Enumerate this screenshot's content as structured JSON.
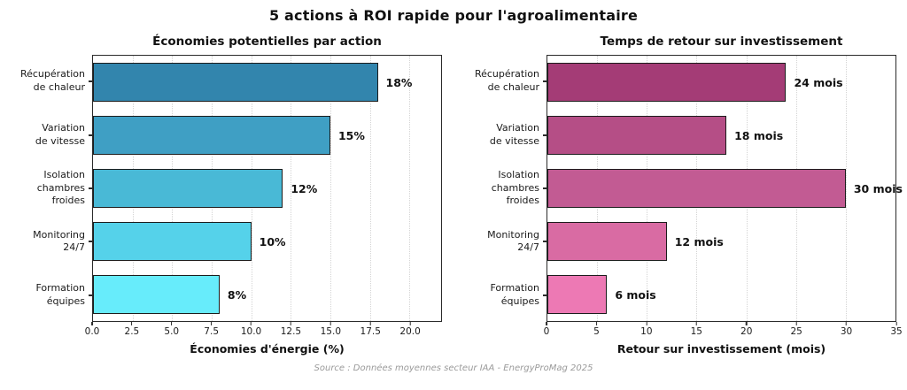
{
  "main_title": "5 actions à ROI rapide pour l'agroalimentaire",
  "source": "Source : Données moyennes secteur IAA - EnergyProMag 2025",
  "colors": {
    "background": "#ffffff",
    "bar_edge": "#1c1c1c",
    "grid": "#d4d4d4",
    "spine": "#2b2b2b",
    "text": "#111111",
    "source_text": "#9a9a9a"
  },
  "chart_data": [
    {
      "type": "bar",
      "orientation": "horizontal",
      "title": "Économies potentielles par action",
      "categories": [
        "Récupération\nde chaleur",
        "Variation\nde vitesse",
        "Isolation\nchambres froides",
        "Monitoring\n24/7",
        "Formation\néquipes"
      ],
      "values": [
        18,
        15,
        12,
        10,
        8
      ],
      "value_labels": [
        "18%",
        "15%",
        "12%",
        "10%",
        "8%"
      ],
      "xlabel": "Économies d'énergie (%)",
      "xlim": [
        0,
        22
      ],
      "tick_values": [
        0,
        2.5,
        5,
        7.5,
        10,
        12.5,
        15,
        17.5,
        20
      ],
      "tick_labels": [
        "0.0",
        "2.5",
        "5.0",
        "7.5",
        "10.0",
        "12.5",
        "15.0",
        "17.5",
        "20.0"
      ],
      "bar_colors": [
        "#3285ad",
        "#3f9fc4",
        "#49b9d6",
        "#55d2ea",
        "#67ecfb"
      ],
      "grid": true,
      "legend": null
    },
    {
      "type": "bar",
      "orientation": "horizontal",
      "title": "Temps de retour sur investissement",
      "categories": [
        "Récupération\nde chaleur",
        "Variation\nde vitesse",
        "Isolation\nchambres froides",
        "Monitoring\n24/7",
        "Formation\néquipes"
      ],
      "values": [
        24,
        18,
        30,
        12,
        6
      ],
      "value_labels": [
        "24 mois",
        "18 mois",
        "30 mois",
        "12 mois",
        "6 mois"
      ],
      "xlabel": "Retour sur investissement (mois)",
      "xlim": [
        0,
        35
      ],
      "tick_values": [
        0,
        5,
        10,
        15,
        20,
        25,
        30,
        35
      ],
      "tick_labels": [
        "0",
        "5",
        "10",
        "15",
        "20",
        "25",
        "30",
        "35"
      ],
      "bar_colors": [
        "#a43c76",
        "#b54e86",
        "#c25b93",
        "#d96ba3",
        "#ed79b4"
      ],
      "grid": true,
      "legend": null
    }
  ]
}
